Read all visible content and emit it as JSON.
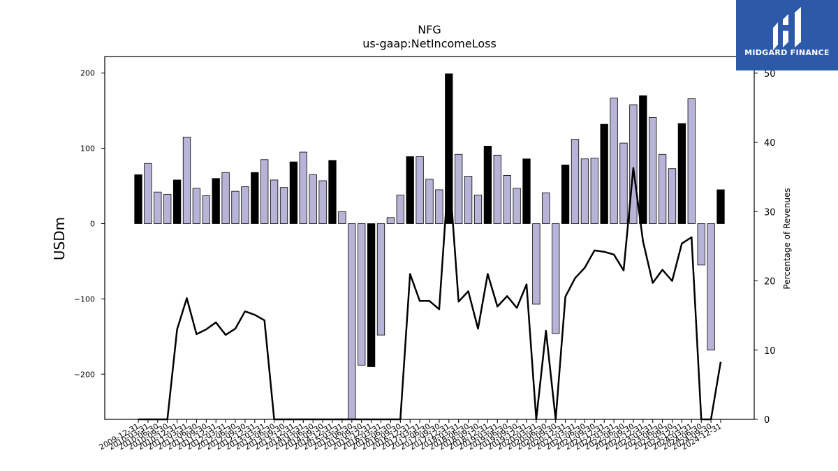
{
  "chart_data": {
    "type": "bar",
    "title": "NFG",
    "subtitle": "us-gaap:NetIncomeLoss",
    "ylabel": "USDm",
    "y2label": "Percentage of Revenues",
    "ylim": [
      -260,
      222
    ],
    "y2lim": [
      0,
      52.4
    ],
    "yticks": [
      -200,
      -100,
      0,
      100,
      200
    ],
    "yticklabels": [
      "−200",
      "−100",
      "0",
      "100",
      "200"
    ],
    "y2ticks": [
      0,
      10,
      20,
      30,
      40,
      50
    ],
    "grid": false,
    "x_tick_labels_note": "tick labels overlap in source; date labels include 2009-12-31, 2010-03-31, 2010-06-30, ... 2024-09-30, 2024-12-31",
    "periods": [
      "2009-12-31",
      "2010-03-31",
      "2010-06-30",
      "2010-09-30",
      "2010-12-31",
      "2011-03-31",
      "2011-06-30",
      "2011-09-30",
      "2011-12-31",
      "2012-03-31",
      "2012-06-30",
      "2012-09-30",
      "2012-12-31",
      "2013-03-31",
      "2013-06-30",
      "2013-09-30",
      "2013-12-31",
      "2014-03-31",
      "2014-06-30",
      "2014-09-30",
      "2014-12-31",
      "2015-03-31",
      "2015-06-30",
      "2015-09-30",
      "2015-12-31",
      "2016-03-31",
      "2016-06-30",
      "2016-09-30",
      "2016-12-31",
      "2017-03-31",
      "2017-06-30",
      "2017-09-30",
      "2017-12-31",
      "2018-03-31",
      "2018-06-30",
      "2018-09-30",
      "2018-12-31",
      "2019-03-31",
      "2019-06-30",
      "2019-09-30",
      "2019-12-31",
      "2020-03-31",
      "2020-06-30",
      "2020-09-30",
      "2020-12-31",
      "2021-03-31",
      "2021-06-30",
      "2021-09-30",
      "2021-12-31",
      "2022-03-31",
      "2022-06-30",
      "2022-09-30",
      "2022-12-31",
      "2023-03-31",
      "2023-06-30",
      "2023-09-30",
      "2023-12-31",
      "2024-03-31",
      "2024-06-30",
      "2024-09-30",
      "2024-12-31"
    ],
    "series": [
      {
        "kind": "bar",
        "values": [
          65,
          80,
          42,
          39,
          58,
          115,
          47,
          37,
          60,
          68,
          43,
          49,
          68,
          85,
          58,
          48,
          82,
          95,
          65,
          57,
          84,
          16,
          -260,
          -188,
          -190,
          -148,
          8,
          38,
          89,
          89,
          59,
          45,
          199,
          92,
          63,
          38,
          103,
          91,
          64,
          47,
          86,
          -107,
          41,
          -146,
          78,
          112,
          86,
          87,
          132,
          167,
          107,
          158,
          170,
          141,
          92,
          73,
          133,
          166,
          -55,
          -168,
          45
        ],
        "is_black": [
          true,
          false,
          false,
          false,
          true,
          false,
          false,
          false,
          true,
          false,
          false,
          false,
          true,
          false,
          false,
          false,
          true,
          false,
          false,
          false,
          true,
          false,
          false,
          false,
          true,
          false,
          false,
          false,
          true,
          false,
          false,
          false,
          true,
          false,
          false,
          false,
          true,
          false,
          false,
          false,
          true,
          false,
          false,
          false,
          true,
          false,
          false,
          false,
          true,
          false,
          false,
          false,
          true,
          false,
          false,
          false,
          true,
          false,
          false,
          false,
          true
        ]
      },
      {
        "kind": "line",
        "axis": "right",
        "values": [
          0,
          0,
          0,
          0,
          13,
          17.5,
          12.3,
          13,
          14,
          12.2,
          13.1,
          15.6,
          15.1,
          14.3,
          0,
          0,
          0,
          0,
          0,
          0,
          0,
          0,
          0,
          0,
          0,
          0,
          0,
          0,
          21,
          17.1,
          17.1,
          15.9,
          36.3,
          17,
          18.5,
          13.1,
          21,
          16.3,
          17.8,
          16.1,
          19.5,
          0,
          12.8,
          0,
          17.7,
          20.4,
          21.9,
          24.4,
          24.2,
          23.8,
          21.5,
          36.3,
          25.7,
          19.7,
          21.6,
          20,
          25.4,
          26.3,
          0,
          0,
          8.3
        ]
      }
    ],
    "colors": {
      "bar_dark": "#000000",
      "bar_light": "#b7b4d7",
      "line": "#000000"
    }
  },
  "logo": {
    "text": "MIDGARD FINANCE",
    "background": "#2d5aa8"
  }
}
